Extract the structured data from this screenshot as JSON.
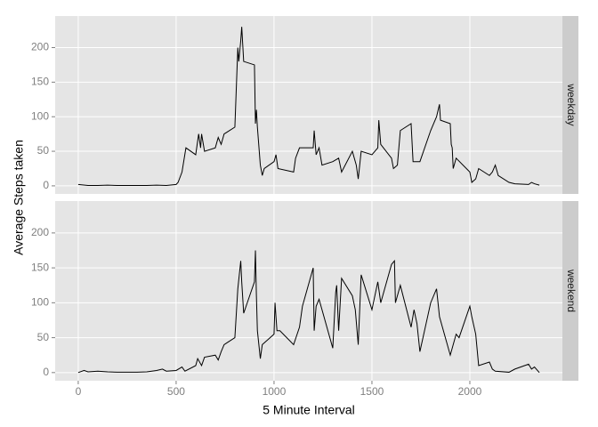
{
  "chart_data": [
    {
      "type": "line",
      "facet": "weekday",
      "ylabel": "Average Steps taken",
      "color": "#000000",
      "x": [
        0,
        50,
        100,
        150,
        200,
        250,
        300,
        350,
        400,
        450,
        500,
        510,
        530,
        550,
        600,
        615,
        625,
        630,
        645,
        700,
        715,
        730,
        745,
        800,
        815,
        820,
        830,
        835,
        840,
        845,
        900,
        905,
        910,
        915,
        930,
        940,
        950,
        1000,
        1010,
        1020,
        1100,
        1110,
        1130,
        1200,
        1205,
        1215,
        1230,
        1245,
        1300,
        1330,
        1345,
        1400,
        1420,
        1430,
        1445,
        1500,
        1530,
        1535,
        1545,
        1600,
        1610,
        1630,
        1645,
        1700,
        1710,
        1745,
        1800,
        1830,
        1845,
        1850,
        1900,
        1905,
        1910,
        1915,
        1930,
        2000,
        2010,
        2030,
        2045,
        2100,
        2115,
        2130,
        2145,
        2200,
        2230,
        2300,
        2315,
        2330,
        2355
      ],
      "values": [
        2,
        0.5,
        0.5,
        1,
        0.5,
        0.5,
        0.5,
        0.5,
        1,
        0.5,
        2,
        5,
        20,
        55,
        45,
        75,
        55,
        75,
        50,
        55,
        70,
        60,
        75,
        85,
        200,
        180,
        210,
        230,
        205,
        180,
        175,
        90,
        110,
        85,
        30,
        15,
        25,
        35,
        45,
        25,
        20,
        40,
        55,
        55,
        80,
        45,
        55,
        30,
        35,
        40,
        20,
        50,
        30,
        10,
        50,
        45,
        55,
        95,
        60,
        40,
        25,
        30,
        80,
        90,
        35,
        35,
        80,
        100,
        118,
        95,
        90,
        60,
        55,
        25,
        40,
        20,
        5,
        10,
        25,
        15,
        20,
        30,
        15,
        5,
        3,
        2,
        5,
        3,
        1
      ],
      "xlim": [
        -117.75,
        2472.75
      ],
      "ylim": [
        -11.7,
        245.7
      ],
      "yticks": [
        0,
        50,
        100,
        150,
        200
      ]
    },
    {
      "type": "line",
      "facet": "weekend",
      "xlabel": "5 Minute Interval",
      "color": "#000000",
      "x": [
        0,
        30,
        50,
        100,
        150,
        200,
        250,
        300,
        350,
        400,
        430,
        450,
        500,
        530,
        545,
        600,
        610,
        630,
        645,
        700,
        715,
        730,
        745,
        800,
        815,
        830,
        835,
        845,
        900,
        905,
        910,
        915,
        930,
        940,
        1000,
        1005,
        1015,
        1030,
        1100,
        1130,
        1145,
        1200,
        1205,
        1215,
        1230,
        1300,
        1315,
        1320,
        1330,
        1345,
        1400,
        1415,
        1430,
        1445,
        1500,
        1530,
        1545,
        1600,
        1615,
        1620,
        1630,
        1645,
        1700,
        1715,
        1730,
        1745,
        1800,
        1830,
        1845,
        1900,
        1910,
        1930,
        1945,
        2000,
        2010,
        2030,
        2045,
        2100,
        2115,
        2130,
        2200,
        2230,
        2300,
        2315,
        2330,
        2355
      ],
      "values": [
        0,
        3,
        1,
        2,
        1,
        0.5,
        0.5,
        0.5,
        1,
        3,
        5,
        2,
        3,
        8,
        2,
        10,
        20,
        10,
        22,
        25,
        18,
        30,
        40,
        50,
        120,
        160,
        130,
        85,
        130,
        175,
        110,
        60,
        20,
        40,
        55,
        100,
        60,
        60,
        40,
        65,
        95,
        150,
        60,
        95,
        105,
        35,
        115,
        125,
        60,
        135,
        110,
        90,
        40,
        140,
        90,
        130,
        100,
        155,
        160,
        100,
        110,
        125,
        65,
        90,
        70,
        30,
        100,
        120,
        80,
        25,
        35,
        55,
        50,
        95,
        80,
        55,
        10,
        15,
        5,
        2,
        0.5,
        5,
        12,
        5,
        8,
        0
      ],
      "xlim": [
        -117.75,
        2472.75
      ],
      "ylim": [
        -11.7,
        245.7
      ],
      "yticks": [
        0,
        50,
        100,
        150,
        200
      ],
      "xticks": [
        0,
        500,
        1000,
        1500,
        2000
      ]
    }
  ]
}
